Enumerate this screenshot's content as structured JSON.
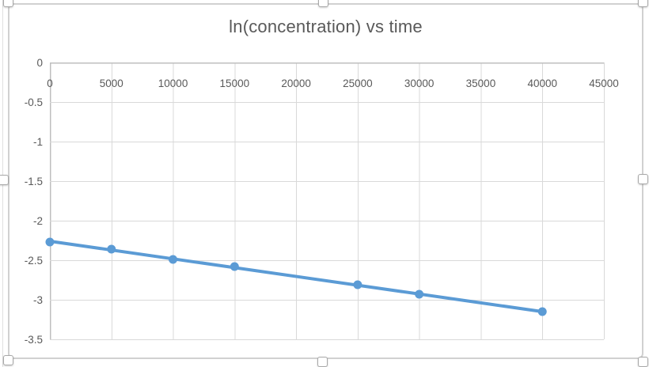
{
  "chart": {
    "title": "ln(concentration) vs time"
  },
  "chart_data": {
    "type": "scatter",
    "title": "ln(concentration) vs time",
    "x": [
      0,
      5000,
      10000,
      15000,
      25000,
      30000,
      40000
    ],
    "y": [
      -2.27,
      -2.36,
      -2.49,
      -2.58,
      -2.81,
      -2.93,
      -3.15
    ],
    "trendline": {
      "type": "linear",
      "x": [
        0,
        40000
      ],
      "y": [
        -2.26,
        -3.15
      ]
    },
    "xlim": [
      0,
      45000
    ],
    "ylim": [
      -3.5,
      0
    ],
    "xticks": [
      0,
      5000,
      10000,
      15000,
      20000,
      25000,
      30000,
      35000,
      40000,
      45000
    ],
    "xtick_labels": [
      "0",
      "5000",
      "10000",
      "15000",
      "20000",
      "25000",
      "30000",
      "35000",
      "40000",
      "45000"
    ],
    "yticks": [
      0,
      -0.5,
      -1,
      -1.5,
      -2,
      -2.5,
      -3,
      -3.5
    ],
    "ytick_labels": [
      "0",
      "-0.5",
      "-1",
      "-1.5",
      "-2",
      "-2.5",
      "-3",
      "-3.5"
    ],
    "grid": true,
    "legend": false,
    "xlabel": "",
    "ylabel": "",
    "colors": {
      "series": "#5B9BD5",
      "gridline": "#D9D9D9",
      "axis_line": "#BFBFBF",
      "axis_text": "#595959",
      "title_text": "#595959",
      "chart_border": "#D1D1D1"
    }
  },
  "selection": {
    "selected": true,
    "handle_positions": [
      "top-left",
      "top-middle",
      "top-right",
      "middle-left",
      "middle-right",
      "bottom-left",
      "bottom-middle",
      "bottom-right"
    ]
  }
}
